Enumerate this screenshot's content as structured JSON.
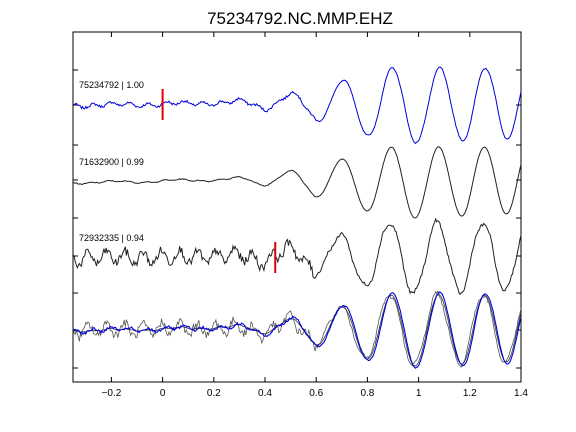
{
  "chart_data": {
    "type": "line",
    "title": "75234792.NC.MMP.EHZ",
    "xlabel": "",
    "ylabel": "",
    "xlim": [
      -0.35,
      1.4
    ],
    "xticks": [
      -0.2,
      0,
      0.2,
      0.4,
      0.6,
      0.8,
      1,
      1.2,
      1.4
    ],
    "xtick_labels": [
      "−0.2",
      "0",
      "0.2",
      "0.4",
      "0.6",
      "0.8",
      "1",
      "1.2",
      "1.4"
    ],
    "grid": false,
    "colors": {
      "reference": "#0000dd",
      "match": "#222222",
      "pick": "#dd0000"
    },
    "traces": [
      {
        "label": "75234792 | 1.00",
        "color": "#0000dd",
        "pick_time": 0.0
      },
      {
        "label": "71632900 | 0.99",
        "color": "#222222"
      },
      {
        "label": "72932335 | 0.94",
        "color": "#222222",
        "pick_time": 0.44
      },
      {
        "label": "",
        "overlay": true
      }
    ]
  }
}
